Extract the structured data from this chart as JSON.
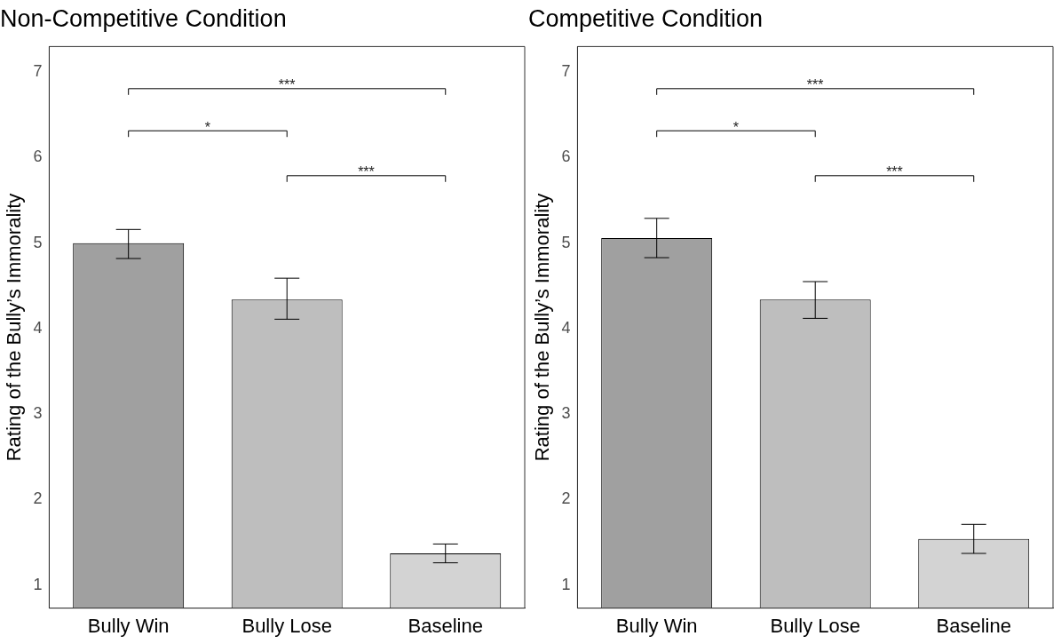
{
  "chart_data": [
    {
      "type": "bar",
      "title": "Non-Competitive Condition",
      "ylabel": "Rating of the Bully’s Immorality",
      "categories": [
        "Bully Win",
        "Bully Lose",
        "Baseline"
      ],
      "values": [
        5.0,
        4.34,
        1.37
      ],
      "errors": [
        [
          4.82,
          5.16
        ],
        [
          4.11,
          4.59
        ],
        [
          1.26,
          1.48
        ]
      ],
      "colors": [
        "#a0a0a0",
        "#bebebe",
        "#d3d3d3"
      ],
      "ylim": [
        0.73,
        7.3
      ],
      "yticks": [
        1,
        2,
        3,
        4,
        5,
        6,
        7
      ],
      "grid": false,
      "legend": false,
      "annotations": [
        "*",
        "***",
        "***"
      ]
    },
    {
      "type": "bar",
      "title": "Competitive Condition",
      "ylabel": "Rating of the Bully’s Immorality",
      "categories": [
        "Bully Win",
        "Bully Lose",
        "Baseline"
      ],
      "values": [
        5.06,
        4.34,
        1.54
      ],
      "errors": [
        [
          4.83,
          5.29
        ],
        [
          4.12,
          4.55
        ],
        [
          1.37,
          1.71
        ]
      ],
      "colors": [
        "#a0a0a0",
        "#bebebe",
        "#d3d3d3"
      ],
      "ylim": [
        0.73,
        7.3
      ],
      "yticks": [
        1,
        2,
        3,
        4,
        5,
        6,
        7
      ],
      "grid": false,
      "legend": false,
      "annotations": [
        "*",
        "***",
        "***"
      ]
    }
  ]
}
